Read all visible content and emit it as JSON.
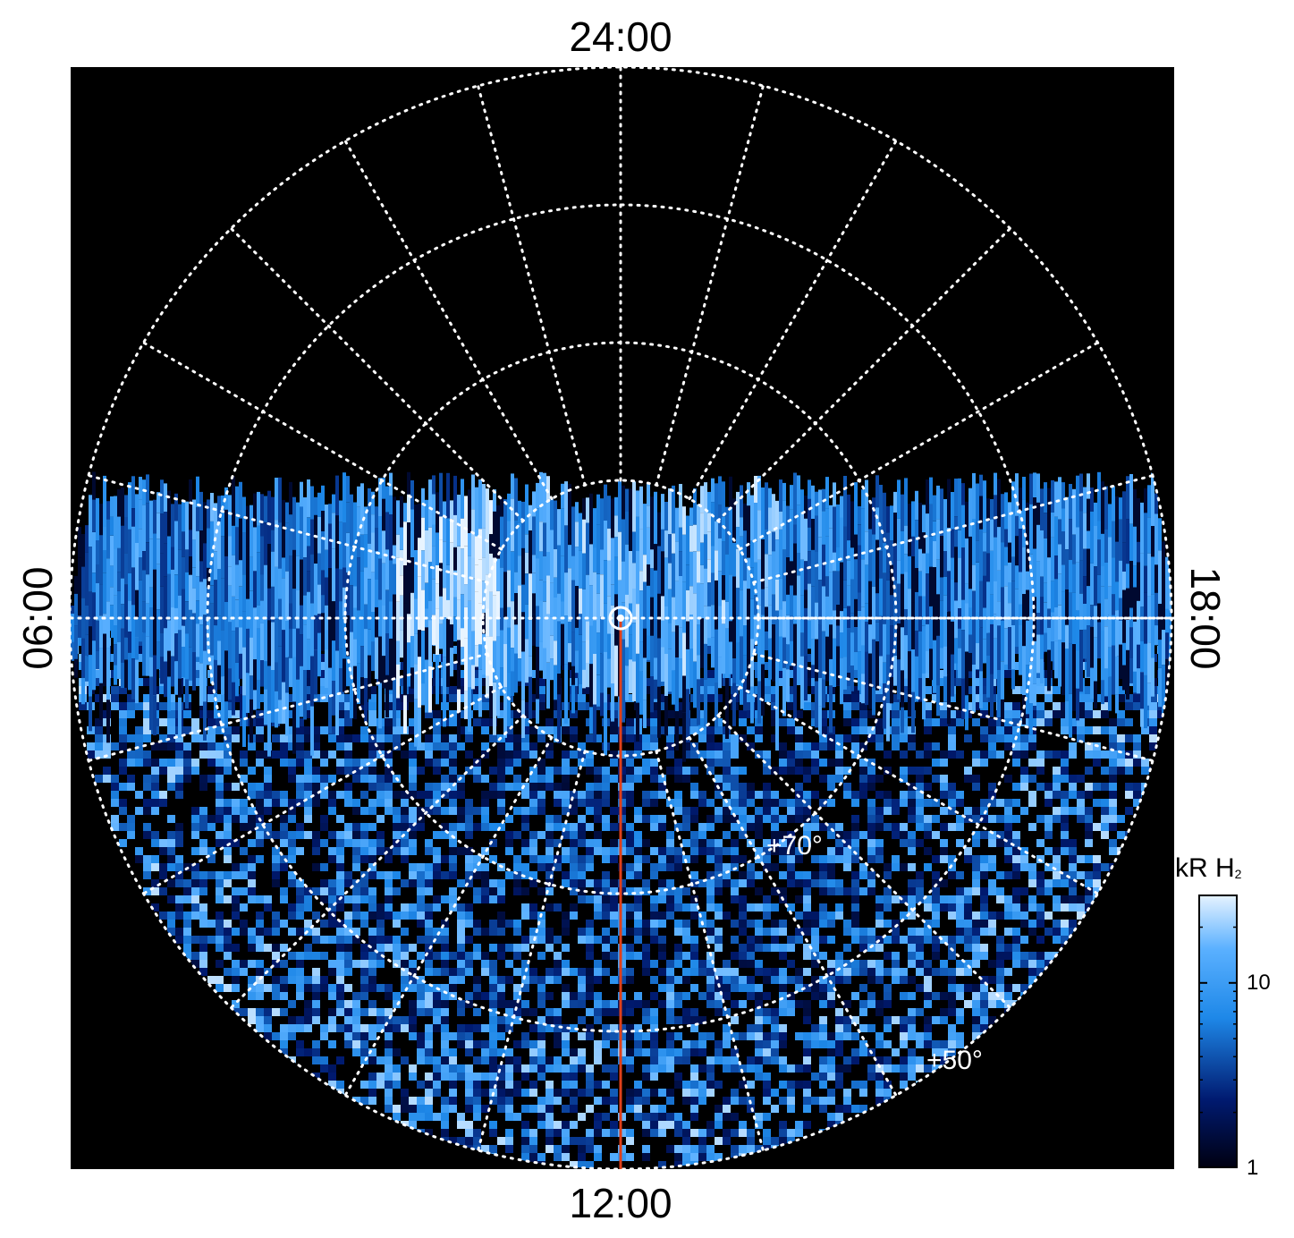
{
  "chart_data": {
    "type": "heatmap",
    "projection": "polar (north-pole view, local time vs. latitude)",
    "local_time_labels": {
      "top": "24:00",
      "bottom": "12:00",
      "left": "06:00",
      "right": "18:00"
    },
    "latitude_labels": [
      "+70°",
      "+50°"
    ],
    "grid": true,
    "colorbar": {
      "title": "kR H",
      "title_subscript": "2",
      "scale": "log",
      "range": [
        1,
        30
      ],
      "ticks": [
        1,
        10
      ],
      "tick_labels": [
        "1",
        "10"
      ],
      "placement": "bottom-right"
    },
    "meridian_line": {
      "local_time": "12:00",
      "color": "#e0401a"
    },
    "colors": {
      "background": "#000000",
      "grid": "#ffffff",
      "colormap_low": "#000010",
      "colormap_mid": "#1e88e8",
      "colormap_high": "#e8f4ff"
    }
  }
}
